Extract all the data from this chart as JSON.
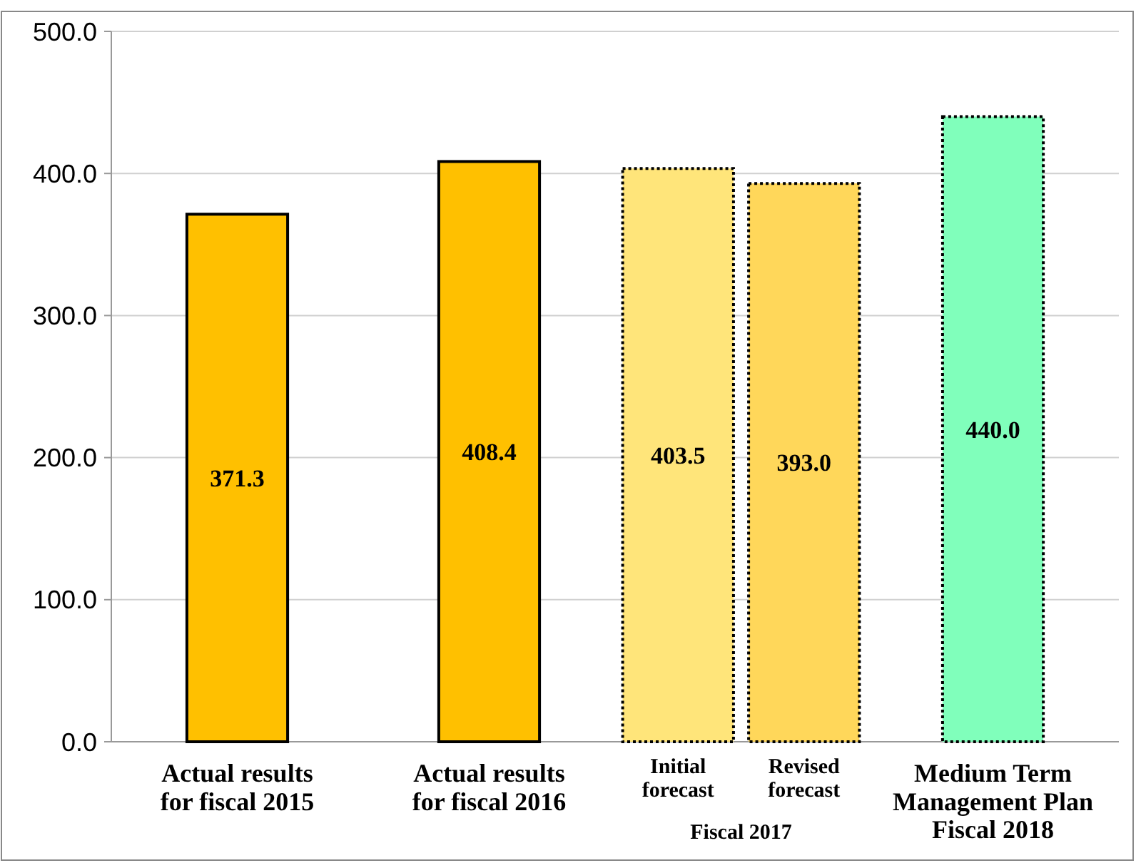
{
  "chart_data": {
    "type": "bar",
    "categories": [
      "Actual results for fiscal 2015",
      "Actual results for fiscal 2016",
      "Initial forecast",
      "Revised forecast",
      "Medium Term Management Plan Fiscal 2018"
    ],
    "series": [
      {
        "values": [
          371.3,
          408.4,
          null,
          null,
          null
        ],
        "value_labels": [
          "371.3",
          "408.4",
          null,
          null,
          null
        ],
        "color": "#ffc000",
        "line_style": "solid"
      },
      {
        "values": [
          null,
          null,
          403.5,
          393.0,
          440.0
        ],
        "value_labels": [
          null,
          null,
          "403.5",
          "393.0",
          "440.0"
        ],
        "colors": [
          null,
          null,
          "#ffe57a",
          "#ffd75a",
          "#80ffbb"
        ],
        "line_style": "dotted"
      }
    ],
    "ylim": [
      0,
      500
    ],
    "yticks": [
      {
        "value": 0,
        "label": "0.0"
      },
      {
        "value": 100,
        "label": "100.0"
      },
      {
        "value": 200,
        "label": "200.0"
      },
      {
        "value": 300,
        "label": "300.0"
      },
      {
        "value": 400,
        "label": "400.0"
      },
      {
        "value": 500,
        "label": "500.0"
      }
    ],
    "grid": "y",
    "annotations": [
      "Fiscal 2017"
    ]
  }
}
